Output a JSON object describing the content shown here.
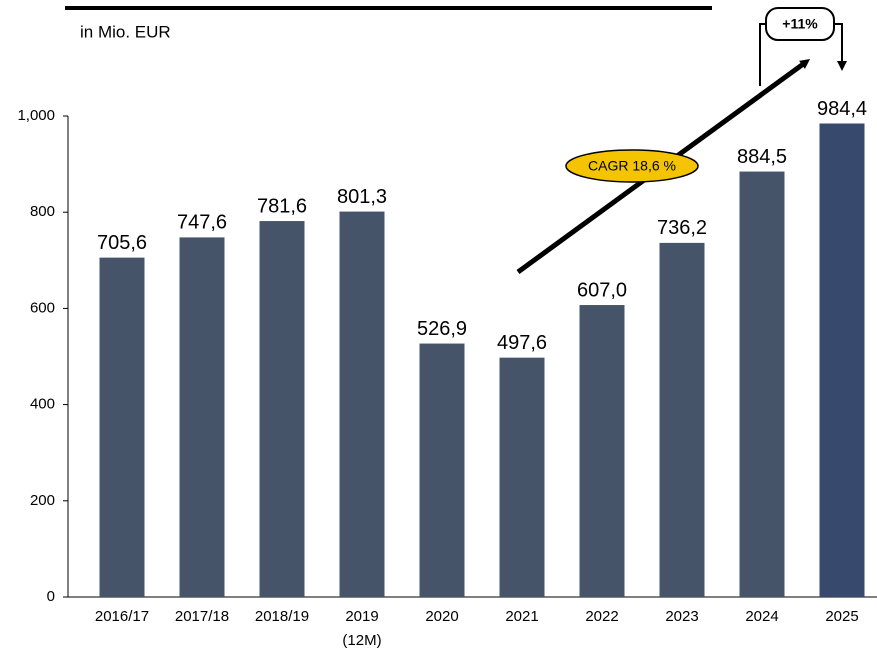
{
  "chart_data": {
    "type": "bar",
    "subtitle": "in Mio. EUR",
    "categories": [
      "2016/17",
      "2017/18",
      "2018/19",
      "2019 (12M)",
      "2020",
      "2021",
      "2022",
      "2023",
      "2024",
      "2025"
    ],
    "values": [
      705.6,
      747.6,
      781.6,
      801.3,
      526.9,
      497.6,
      607.0,
      736.2,
      884.5,
      984.4
    ],
    "value_labels": [
      "705,6",
      "747,6",
      "781,6",
      "801,3",
      "526,9",
      "497,6",
      "607,0",
      "736,2",
      "884,5",
      "984,4"
    ],
    "colors": [
      "#46546a",
      "#46546a",
      "#46546a",
      "#46546a",
      "#46546a",
      "#46546a",
      "#46546a",
      "#46546a",
      "#46546a",
      "#374a6e"
    ],
    "ylim": [
      0,
      1000
    ],
    "yticks": [
      0,
      200,
      400,
      600,
      800,
      {
        "value": 1000,
        "label": "1,000"
      }
    ],
    "annotations": [
      "CAGR 18,6 %",
      "+11%"
    ]
  }
}
